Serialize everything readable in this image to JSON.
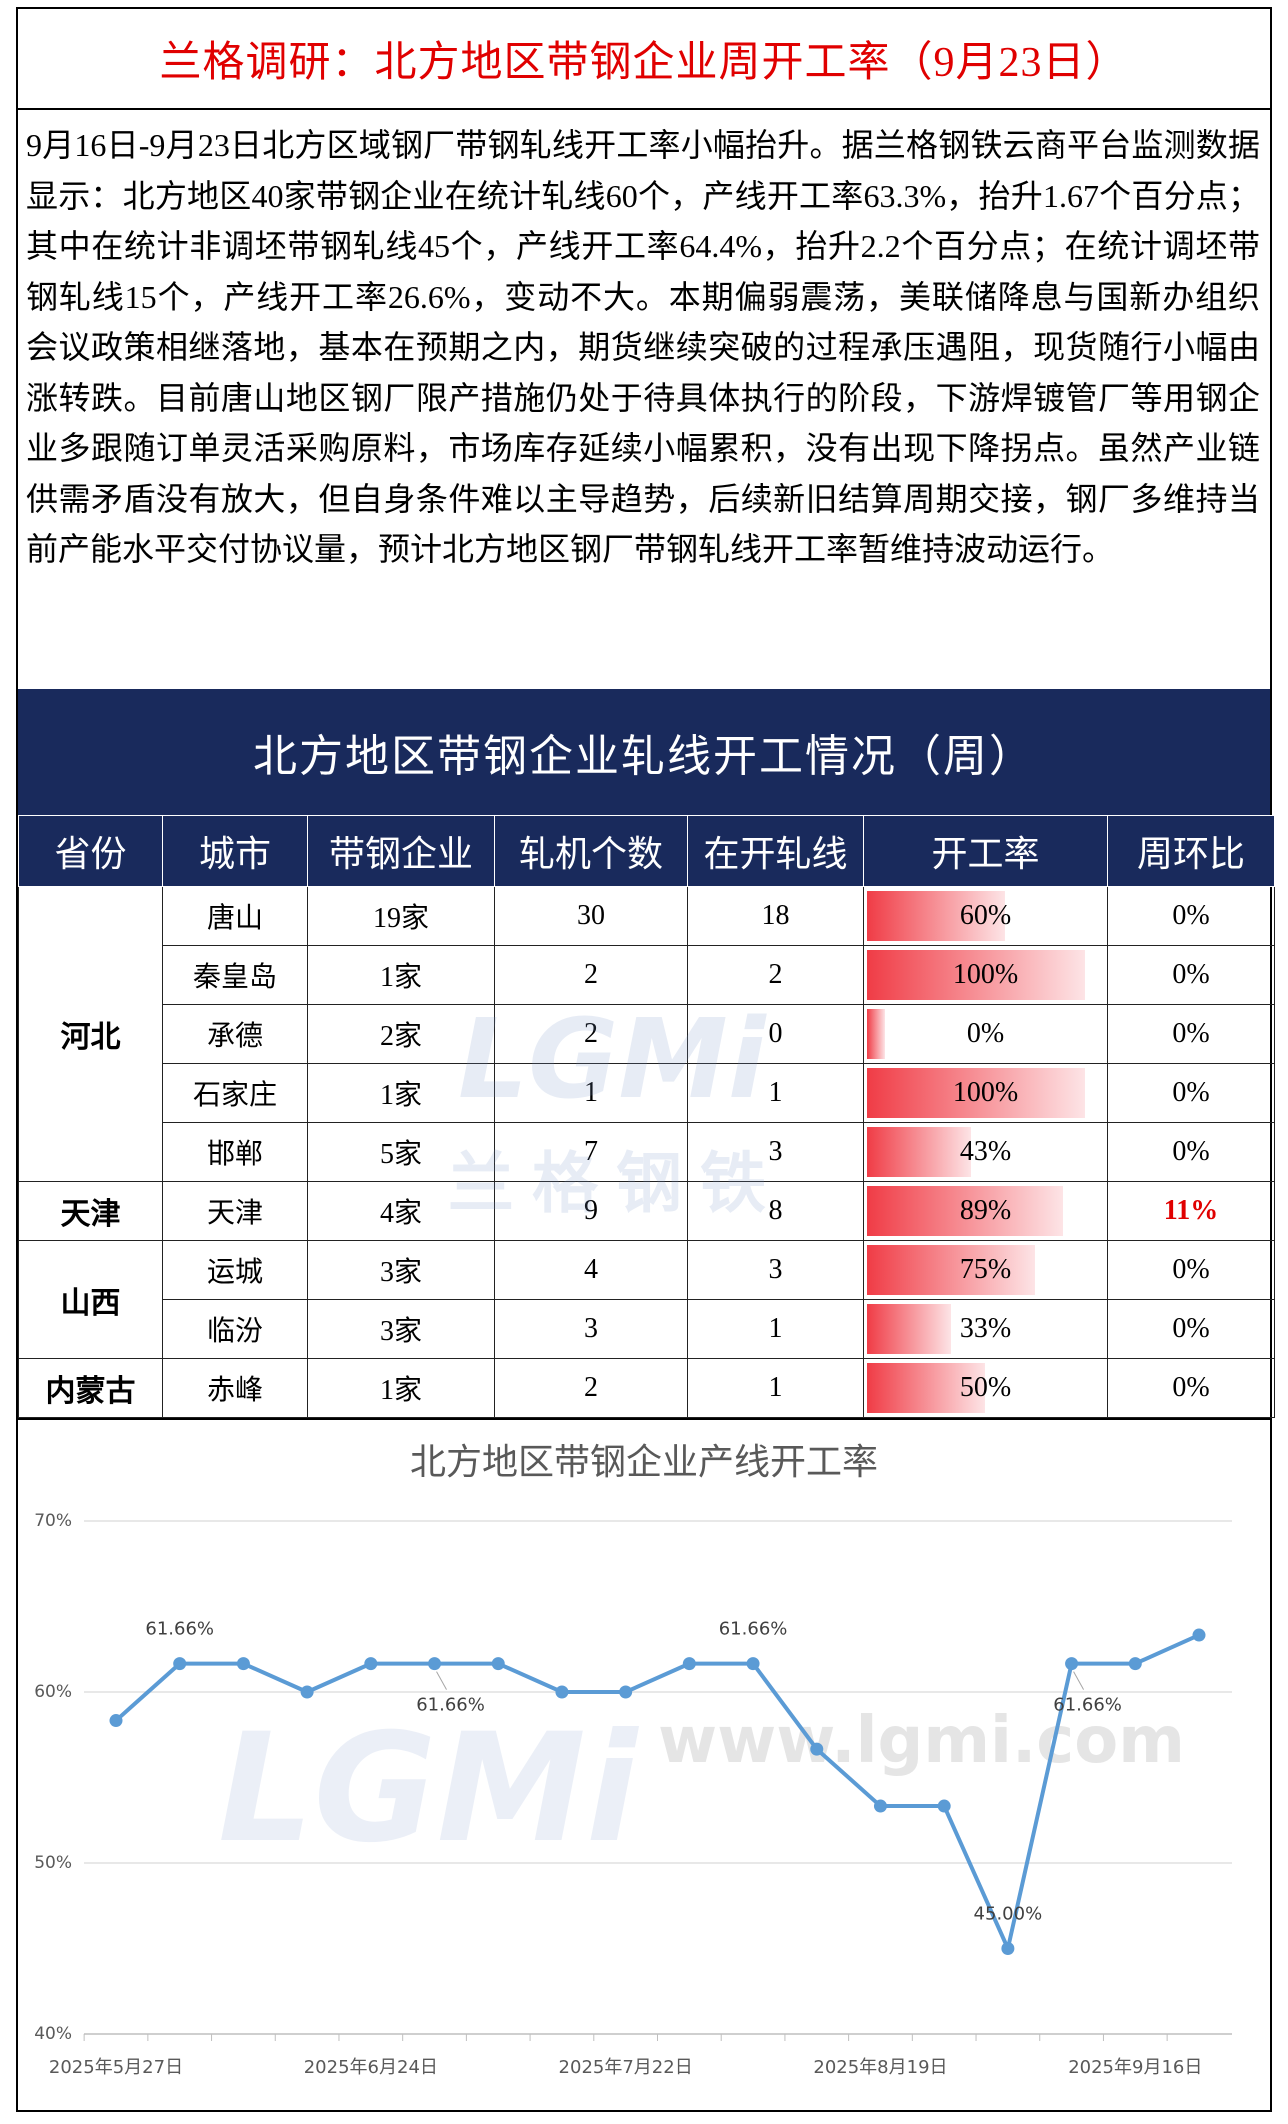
{
  "header": {
    "title": "兰格调研：北方地区带钢企业周开工率（9月23日）"
  },
  "body": {
    "text": "9月16日-9月23日北方区域钢厂带钢轧线开工率小幅抬升。据兰格钢铁云商平台监测数据显示：北方地区40家带钢企业在统计轧线60个，产线开工率63.3%，抬升1.67个百分点；其中在统计非调坯带钢轧线45个，产线开工率64.4%，抬升2.2个百分点；在统计调坯带钢轧线15个，产线开工率26.6%，变动不大。本期偏弱震荡，美联储降息与国新办组织会议政策相继落地，基本在预期之内，期货继续突破的过程承压遇阻，现货随行小幅由涨转跌。目前唐山地区钢厂限产措施仍处于待具体执行的阶段，下游焊镀管厂等用钢企业多跟随订单灵活采购原料，市场库存延续小幅累积，没有出现下降拐点。虽然产业链供需矛盾没有放大，但自身条件难以主导趋势，后续新旧结算周期交接，钢厂多维持当前产能水平交付协议量，预计北方地区钢厂带钢轧线开工率暂维持波动运行。"
  },
  "table": {
    "title": "北方地区带钢企业轧线开工情况（周）",
    "headers": [
      "省份",
      "城市",
      "带钢企业",
      "轧机个数",
      "在开轧线",
      "开工率",
      "周环比"
    ],
    "watermarks": [
      "LGMi",
      "兰格钢铁"
    ],
    "provinces": [
      {
        "name": "河北",
        "rows": [
          {
            "city": "唐山",
            "companies": "19家",
            "mills": 30,
            "running": 18,
            "rate": {
              "value": 60,
              "label": "60%"
            },
            "wow": {
              "value": 0,
              "label": "0%"
            }
          },
          {
            "city": "秦皇岛",
            "companies": "1家",
            "mills": 2,
            "running": 2,
            "rate": {
              "value": 100,
              "label": "100%"
            },
            "wow": {
              "value": 0,
              "label": "0%"
            }
          },
          {
            "city": "承德",
            "companies": "2家",
            "mills": 2,
            "running": 0,
            "rate": {
              "value": 0,
              "label": "0%"
            },
            "wow": {
              "value": 0,
              "label": "0%"
            }
          },
          {
            "city": "石家庄",
            "companies": "1家",
            "mills": 1,
            "running": 1,
            "rate": {
              "value": 100,
              "label": "100%"
            },
            "wow": {
              "value": 0,
              "label": "0%"
            }
          },
          {
            "city": "邯郸",
            "companies": "5家",
            "mills": 7,
            "running": 3,
            "rate": {
              "value": 43,
              "label": "43%"
            },
            "wow": {
              "value": 0,
              "label": "0%"
            }
          }
        ]
      },
      {
        "name": "天津",
        "rows": [
          {
            "city": "天津",
            "companies": "4家",
            "mills": 9,
            "running": 8,
            "rate": {
              "value": 89,
              "label": "89%"
            },
            "wow": {
              "value": 11,
              "label": "11%"
            }
          }
        ]
      },
      {
        "name": "山西",
        "rows": [
          {
            "city": "运城",
            "companies": "3家",
            "mills": 4,
            "running": 3,
            "rate": {
              "value": 75,
              "label": "75%"
            },
            "wow": {
              "value": 0,
              "label": "0%"
            }
          },
          {
            "city": "临汾",
            "companies": "3家",
            "mills": 3,
            "running": 1,
            "rate": {
              "value": 33,
              "label": "33%"
            },
            "wow": {
              "value": 0,
              "label": "0%"
            }
          }
        ]
      },
      {
        "name": "内蒙古",
        "rows": [
          {
            "city": "赤峰",
            "companies": "1家",
            "mills": 2,
            "running": 1,
            "rate": {
              "value": 50,
              "label": "50%"
            },
            "wow": {
              "value": 0,
              "label": "0%"
            }
          }
        ]
      }
    ]
  },
  "chart_data": {
    "type": "line",
    "title": "北方地区带钢企业产线开工率",
    "watermarks": [
      "LGMi",
      "www.lgmi.com"
    ],
    "color": "#5b9bd5",
    "grid": true,
    "categories": [
      "2025年5月27日",
      null,
      null,
      null,
      "2025年6月24日",
      null,
      null,
      null,
      "2025年7月22日",
      null,
      null,
      null,
      "2025年8月19日",
      null,
      null,
      null,
      "2025年9月16日",
      null
    ],
    "values": [
      58.33,
      61.66,
      61.66,
      60,
      61.66,
      61.66,
      61.66,
      60,
      60,
      61.66,
      61.66,
      56.66,
      53.33,
      53.33,
      45.0,
      61.66,
      61.66,
      63.33
    ],
    "value_labels": [
      null,
      "61.66%",
      null,
      null,
      null,
      "61.66%",
      null,
      null,
      null,
      null,
      "61.66%",
      null,
      null,
      null,
      "45.00%",
      "61.66%",
      null,
      null
    ],
    "ylim": [
      40,
      70
    ],
    "yticks": [
      {
        "value": 40,
        "label": "40%"
      },
      {
        "value": 50,
        "label": "50%"
      },
      {
        "value": 60,
        "label": "60%"
      },
      {
        "value": 70,
        "label": "70%"
      }
    ]
  }
}
